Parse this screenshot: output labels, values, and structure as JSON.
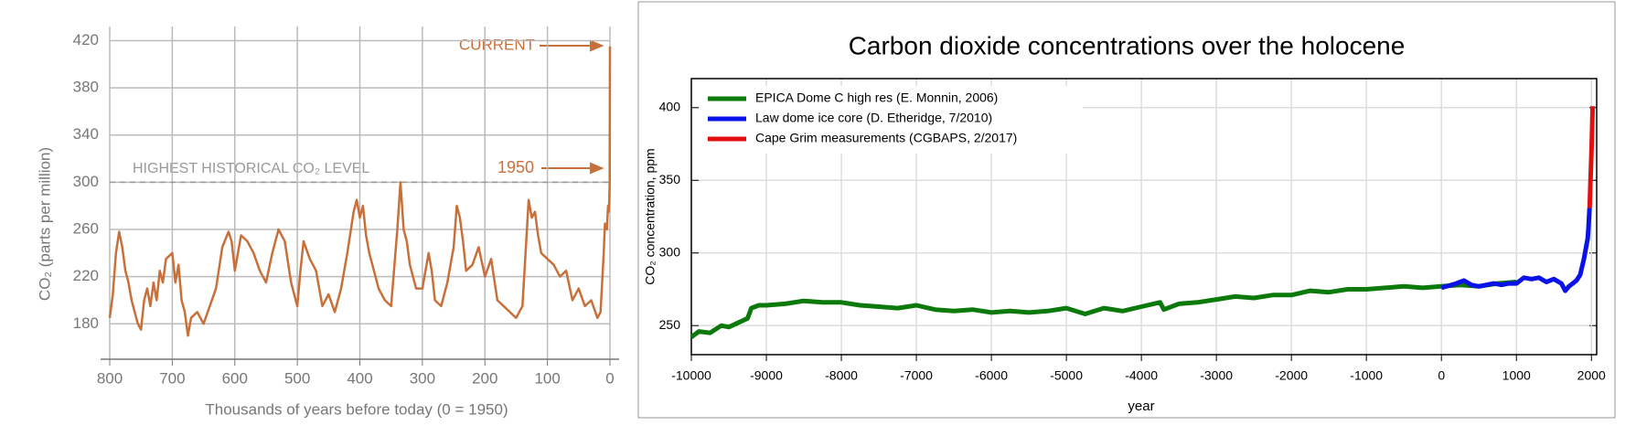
{
  "chart_data": [
    {
      "type": "line",
      "xlabel": "Thousands of years before today (0 = 1950)",
      "ylabel": "CO₂ (parts per million)",
      "annotations": [
        "CURRENT",
        "1950",
        "HIGHEST HISTORICAL CO₂ LEVEL"
      ],
      "hline": 300,
      "color": "#c8703a",
      "xlim": [
        800,
        0
      ],
      "ylim": [
        150,
        432
      ],
      "xticks": [
        800,
        700,
        600,
        500,
        400,
        300,
        200,
        100,
        0
      ],
      "yticks": [
        180,
        220,
        260,
        300,
        340,
        380,
        420
      ],
      "grid": true,
      "x": [
        800,
        795,
        790,
        785,
        780,
        775,
        770,
        765,
        760,
        755,
        750,
        745,
        740,
        735,
        730,
        725,
        720,
        715,
        710,
        700,
        695,
        690,
        685,
        680,
        675,
        670,
        660,
        650,
        640,
        630,
        620,
        610,
        605,
        600,
        595,
        590,
        580,
        570,
        560,
        550,
        540,
        530,
        520,
        510,
        500,
        495,
        490,
        480,
        470,
        460,
        450,
        440,
        430,
        420,
        410,
        405,
        400,
        395,
        390,
        385,
        380,
        370,
        360,
        350,
        340,
        335,
        330,
        325,
        320,
        310,
        300,
        290,
        285,
        280,
        270,
        260,
        250,
        245,
        240,
        235,
        230,
        220,
        210,
        200,
        190,
        180,
        170,
        160,
        150,
        140,
        135,
        130,
        125,
        120,
        115,
        110,
        100,
        90,
        80,
        70,
        60,
        50,
        40,
        30,
        20,
        15,
        10,
        8,
        5,
        3,
        2,
        1,
        0.5,
        0
      ],
      "values": [
        185,
        205,
        240,
        258,
        245,
        225,
        215,
        200,
        190,
        180,
        175,
        200,
        210,
        195,
        215,
        200,
        225,
        215,
        235,
        240,
        215,
        230,
        200,
        190,
        170,
        185,
        190,
        180,
        195,
        210,
        245,
        258,
        250,
        225,
        240,
        255,
        250,
        240,
        225,
        215,
        240,
        260,
        250,
        215,
        195,
        225,
        250,
        235,
        225,
        195,
        205,
        190,
        210,
        240,
        275,
        285,
        270,
        280,
        255,
        240,
        230,
        210,
        200,
        195,
        260,
        300,
        260,
        250,
        230,
        210,
        210,
        240,
        225,
        200,
        195,
        215,
        245,
        280,
        270,
        250,
        225,
        230,
        245,
        220,
        235,
        200,
        195,
        190,
        185,
        195,
        240,
        285,
        270,
        275,
        255,
        240,
        235,
        230,
        220,
        225,
        200,
        210,
        195,
        200,
        185,
        190,
        240,
        265,
        260,
        280,
        275,
        285,
        300,
        415
      ]
    },
    {
      "type": "line",
      "title": "Carbon dioxide concentrations over the holocene",
      "xlabel": "year",
      "ylabel": "CO₂ concentration, ppm",
      "xlim": [
        -10000,
        2070
      ],
      "ylim": [
        230,
        420
      ],
      "xticks": [
        -10000,
        -9000,
        -8000,
        -7000,
        -6000,
        -5000,
        -4000,
        -3000,
        -2000,
        -1000,
        0,
        1000,
        2000
      ],
      "yticks": [
        250,
        300,
        350,
        400
      ],
      "grid": true,
      "legend": "upper left",
      "series": [
        {
          "name": "EPICA Dome C high res (E. Monnin, 2006)",
          "color": "#0b7a0b",
          "x": [
            -10000,
            -9900,
            -9750,
            -9600,
            -9500,
            -9250,
            -9200,
            -9100,
            -9000,
            -8750,
            -8500,
            -8250,
            -8000,
            -7750,
            -7500,
            -7250,
            -7000,
            -6750,
            -6500,
            -6250,
            -6000,
            -5750,
            -5500,
            -5250,
            -5000,
            -4750,
            -4500,
            -4250,
            -4000,
            -3750,
            -3700,
            -3500,
            -3250,
            -3000,
            -2750,
            -2500,
            -2250,
            -2000,
            -1750,
            -1500,
            -1250,
            -1000,
            -750,
            -500,
            -250,
            0,
            250,
            500,
            750,
            1000
          ],
          "values": [
            242,
            246,
            245,
            250,
            249,
            255,
            262,
            264,
            264,
            265,
            267,
            266,
            266,
            264,
            263,
            262,
            264,
            261,
            260,
            261,
            259,
            260,
            259,
            260,
            262,
            258,
            262,
            260,
            263,
            266,
            261,
            265,
            266,
            268,
            270,
            269,
            271,
            271,
            274,
            273,
            275,
            275,
            276,
            277,
            276,
            277,
            278,
            277,
            279,
            280
          ]
        },
        {
          "name": "Law dome ice core (D. Etheridge, 7/2010)",
          "color": "#0a12e8",
          "x": [
            0,
            200,
            300,
            400,
            500,
            600,
            700,
            800,
            900,
            1000,
            1100,
            1200,
            1300,
            1400,
            1500,
            1600,
            1650,
            1700,
            1800,
            1850,
            1900,
            1950,
            1960,
            1975
          ],
          "values": [
            276,
            279,
            281,
            278,
            277,
            278,
            279,
            278,
            279,
            279,
            283,
            282,
            283,
            280,
            282,
            279,
            274,
            277,
            281,
            285,
            296,
            310,
            317,
            331
          ]
        },
        {
          "name": "Cape Grim measurements (CGBAPS, 2/2017)",
          "color": "#e01010",
          "x": [
            1976,
            1985,
            1995,
            2005,
            2016
          ],
          "values": [
            331,
            345,
            360,
            378,
            401
          ]
        }
      ]
    }
  ]
}
